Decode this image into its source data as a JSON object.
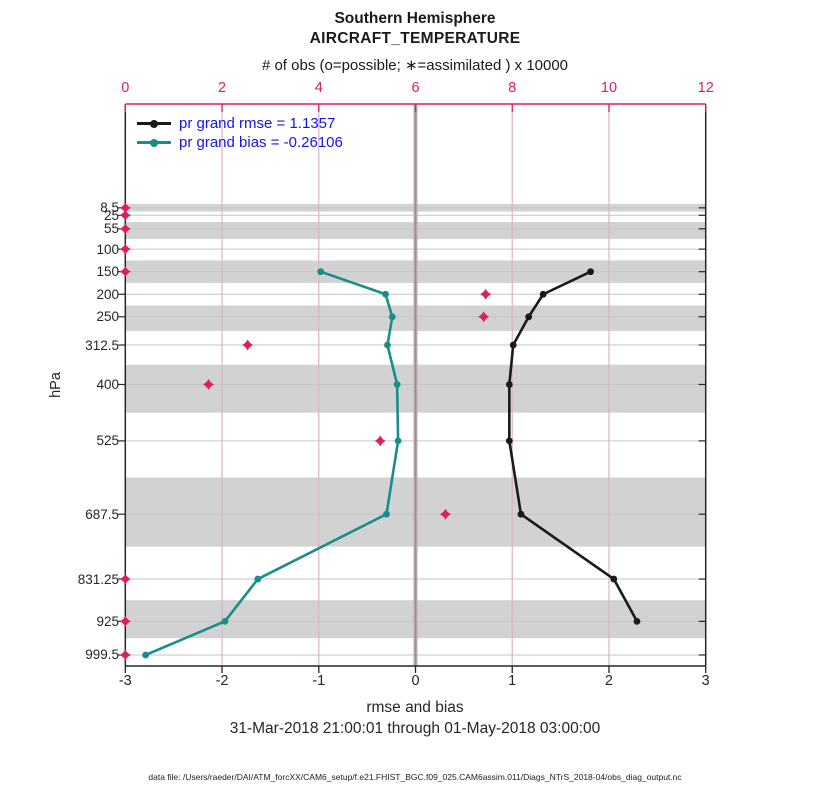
{
  "header": {
    "title_line1": "Southern Hemisphere",
    "title_line2": "AIRCRAFT_TEMPERATURE"
  },
  "colors": {
    "obs_magenta": "#df1e5c",
    "rmse_black": "#1a1a1a",
    "bias_teal": "#1a8c8c",
    "legend_text_blue": "#1414f0",
    "band_gray": "#d2d2d2",
    "hgrid_gray": "#c6c6c6",
    "vgrid_pink": "#d9b5c3",
    "zero_line_gray": "#b5acb0",
    "axis_dark": "#262626"
  },
  "legend": {
    "entries": [
      {
        "label": "pr grand rmse = 1.1357",
        "color": "#1a1a1a"
      },
      {
        "label": "pr grand bias = -0.26106",
        "color": "#1a8c8c"
      }
    ]
  },
  "top_axis": {
    "label": "# of obs (o=possible; ∗=assimilated ) x 10000",
    "tick_labels": [
      "0",
      "2",
      "4",
      "6",
      "8",
      "10",
      "12"
    ],
    "tick_values": [
      0,
      2,
      4,
      6,
      8,
      10,
      12
    ],
    "xlim": [
      0,
      12
    ]
  },
  "bottom_axis": {
    "label": "rmse and bias",
    "tick_labels": [
      "-3",
      "-2",
      "-1",
      "0",
      "1",
      "2",
      "3"
    ],
    "tick_values": [
      -3,
      -2,
      -1,
      0,
      1,
      2,
      3
    ],
    "xlim": [
      -3,
      3
    ]
  },
  "left_axis": {
    "label": "hPa",
    "level_labels": [
      "8.5",
      "25",
      "55",
      "100",
      "150",
      "200",
      "250",
      "312.5",
      "400",
      "525",
      "687.5",
      "831.25",
      "925",
      "999.5"
    ],
    "level_values": [
      8.5,
      25,
      55,
      100,
      150,
      200,
      250,
      312.5,
      400,
      525,
      687.5,
      831.25,
      925,
      999.5
    ]
  },
  "footer": {
    "timespan": "31-Mar-2018 21:00:01 through 01-May-2018 03:00:00",
    "datafile": "data file: /Users/raeder/DAI/ATM_forcXX/CAM6_setup/f.e21.FHIST_BGC.f09_025.CAM6assim.011/Diags_NTrS_2018-04/obs_diag_output.nc"
  },
  "chart_data": {
    "type": "line",
    "title": "Southern Hemisphere AIRCRAFT_TEMPERATURE",
    "xlabel": "rmse and bias",
    "ylabel": "hPa",
    "xlim_bottom": [
      -3,
      3
    ],
    "xlim_top_obs": [
      0,
      12
    ],
    "grid": true,
    "legend_position": "top-left",
    "series": [
      {
        "name": "pr grand rmse",
        "stat_value": 1.1357,
        "color": "#1a1a1a",
        "levels_hPa": [
          150,
          200,
          250,
          312.5,
          400,
          525,
          687.5,
          831.25,
          925
        ],
        "values": [
          1.81,
          1.32,
          1.17,
          1.01,
          0.97,
          0.97,
          1.09,
          2.05,
          2.29
        ]
      },
      {
        "name": "pr grand bias",
        "stat_value": -0.26106,
        "color": "#1a8c8c",
        "levels_hPa": [
          150,
          200,
          250,
          312.5,
          400,
          525,
          687.5,
          831.25,
          925,
          999.5
        ],
        "values": [
          -0.98,
          -0.31,
          -0.24,
          -0.29,
          -0.19,
          -0.18,
          -0.3,
          -1.63,
          -1.97,
          -2.79
        ]
      }
    ],
    "obs_counts_x10000": {
      "marker": "asterisk-and-circle",
      "color": "#df1e5c",
      "levels_hPa": [
        8.5,
        25,
        55,
        100,
        150,
        200,
        250,
        312.5,
        400,
        525,
        687.5,
        831.25,
        925,
        999.5
      ],
      "values": [
        0,
        0,
        0,
        0,
        0,
        7.45,
        7.41,
        2.53,
        1.72,
        5.27,
        6.62,
        0,
        0,
        0
      ]
    },
    "gray_bands_hPa": [
      [
        0,
        16.75
      ],
      [
        40,
        77.5
      ],
      [
        125,
        175
      ],
      [
        225,
        281.25
      ],
      [
        356.25,
        462.5
      ],
      [
        606.25,
        759.4
      ],
      [
        878.1,
        962.3
      ]
    ]
  }
}
